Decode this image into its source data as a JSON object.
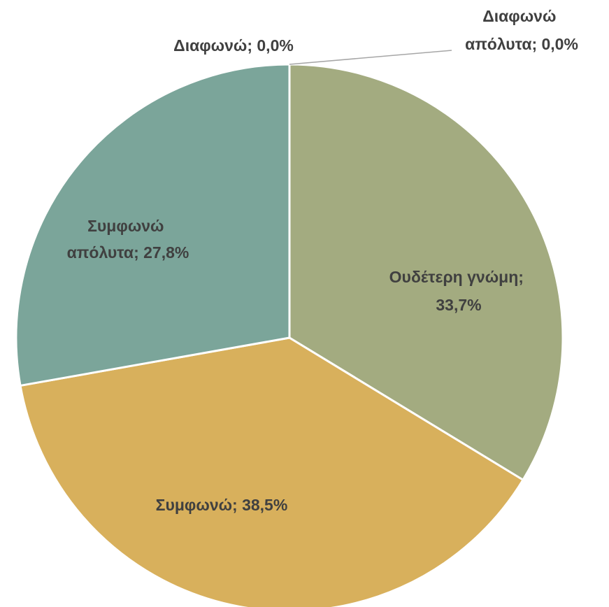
{
  "chart_data": {
    "type": "pie",
    "title": "",
    "slices": [
      {
        "name": "Διαφωνώ απόλυτα",
        "value": 0.0,
        "label": [
          "Διαφωνώ",
          "απόλυτα; 0,0%"
        ],
        "color": "#9E9E9E"
      },
      {
        "name": "Ουδέτερη γνώμη",
        "value": 33.7,
        "label": [
          "Ουδέτερη γνώμη;",
          "33,7%"
        ],
        "color": "#A3AB80"
      },
      {
        "name": "Συμφωνώ",
        "value": 38.5,
        "label": [
          "Συμφωνώ; 38,5%"
        ],
        "color": "#D8B05C"
      },
      {
        "name": "Συμφωνώ απόλυτα",
        "value": 27.8,
        "label": [
          "Συμφωνώ",
          "απόλυτα; 27,8%"
        ],
        "color": "#7BA59A"
      },
      {
        "name": "Διαφωνώ",
        "value": 0.0,
        "label": [
          "Διαφωνώ; 0,0%"
        ],
        "color": "#B0B0B0"
      }
    ]
  }
}
